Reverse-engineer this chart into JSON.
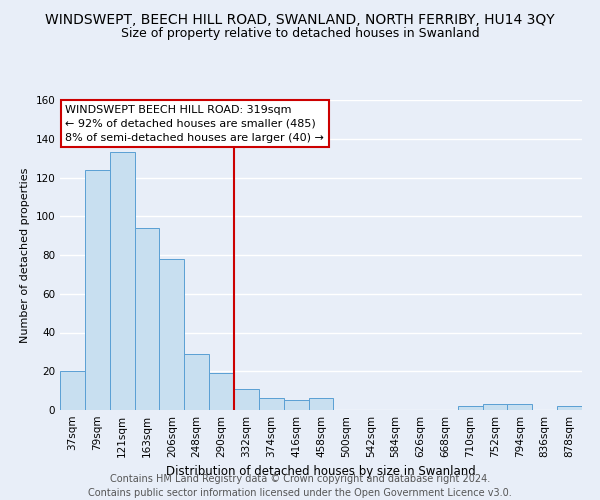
{
  "title": "WINDSWEPT, BEECH HILL ROAD, SWANLAND, NORTH FERRIBY, HU14 3QY",
  "subtitle": "Size of property relative to detached houses in Swanland",
  "xlabel": "Distribution of detached houses by size in Swanland",
  "ylabel": "Number of detached properties",
  "bar_color": "#c8dff0",
  "bar_edge_color": "#5a9fd4",
  "categories": [
    "37sqm",
    "79sqm",
    "121sqm",
    "163sqm",
    "206sqm",
    "248sqm",
    "290sqm",
    "332sqm",
    "374sqm",
    "416sqm",
    "458sqm",
    "500sqm",
    "542sqm",
    "584sqm",
    "626sqm",
    "668sqm",
    "710sqm",
    "752sqm",
    "794sqm",
    "836sqm",
    "878sqm"
  ],
  "values": [
    20,
    124,
    133,
    94,
    78,
    29,
    19,
    11,
    6,
    5,
    6,
    0,
    0,
    0,
    0,
    0,
    2,
    3,
    3,
    0,
    2
  ],
  "vline_x_index": 7,
  "vline_color": "#cc0000",
  "annotation_line1": "WINDSWEPT BEECH HILL ROAD: 319sqm",
  "annotation_line2": "← 92% of detached houses are smaller (485)",
  "annotation_line3": "8% of semi-detached houses are larger (40) →",
  "annotation_box_color": "#ffffff",
  "annotation_box_edge_color": "#cc0000",
  "ylim": [
    0,
    160
  ],
  "yticks": [
    0,
    20,
    40,
    60,
    80,
    100,
    120,
    140,
    160
  ],
  "footer1": "Contains HM Land Registry data © Crown copyright and database right 2024.",
  "footer2": "Contains public sector information licensed under the Open Government Licence v3.0.",
  "background_color": "#e8eef8",
  "plot_bg_color": "#e8eef8",
  "grid_color": "#ffffff",
  "title_fontsize": 10,
  "subtitle_fontsize": 9,
  "footer_fontsize": 7,
  "annot_fontsize": 8,
  "ylabel_fontsize": 8,
  "xlabel_fontsize": 8.5,
  "tick_fontsize": 7.5
}
